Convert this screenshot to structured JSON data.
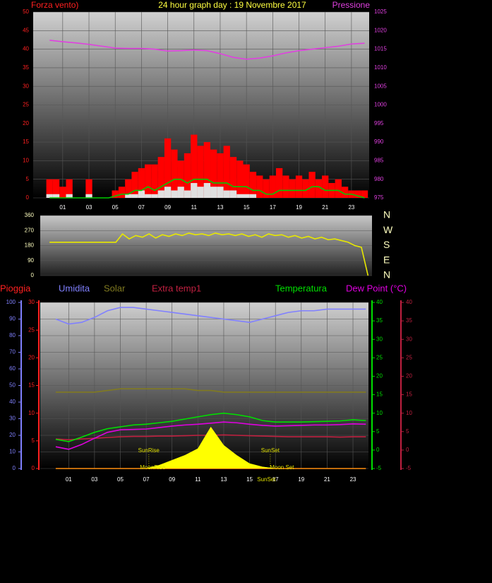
{
  "chart_data": [
    {
      "type": "combo",
      "title": "24 hour graph day : 19 Novembre 2017",
      "ylabel": "Forza vento)",
      "y2label": "Pressione",
      "ylim": [
        0,
        50
      ],
      "yticks": [
        0,
        5,
        10,
        15,
        20,
        25,
        30,
        35,
        40,
        45,
        50
      ],
      "ycolor": "#ff2020",
      "y2lim": [
        975,
        1025
      ],
      "y2ticks": [
        975,
        980,
        985,
        990,
        995,
        1000,
        1005,
        1010,
        1015,
        1020,
        1025
      ],
      "y2color": "#e040e0",
      "xlim": [
        -1.25,
        24.35
      ],
      "xticks": [
        {
          "value": 1,
          "label": "01"
        },
        {
          "value": 3,
          "label": "03"
        },
        {
          "value": 5,
          "label": "05"
        },
        {
          "value": 7,
          "label": "07"
        },
        {
          "value": 9,
          "label": "09"
        },
        {
          "value": 11,
          "label": "11"
        },
        {
          "value": 13,
          "label": "13"
        },
        {
          "value": 15,
          "label": "15"
        },
        {
          "value": 17,
          "label": "17"
        },
        {
          "value": 19,
          "label": "19"
        },
        {
          "value": 21,
          "label": "21"
        },
        {
          "value": 23,
          "label": "23"
        }
      ],
      "grid": true,
      "x": [
        0,
        0.5,
        1,
        1.5,
        2,
        2.5,
        3,
        3.5,
        4,
        4.5,
        5,
        5.5,
        6,
        6.5,
        7,
        7.5,
        8,
        8.5,
        9,
        9.5,
        10,
        10.5,
        11,
        11.5,
        12,
        12.5,
        13,
        13.5,
        14,
        14.5,
        15,
        15.5,
        16,
        16.5,
        17,
        17.5,
        18,
        18.5,
        19,
        19.5,
        20,
        20.5,
        21,
        21.5,
        22,
        22.5,
        23,
        23.5,
        24
      ],
      "series": [
        {
          "style": "bars",
          "axis": "y",
          "color": "#ff0000",
          "values": [
            5,
            5,
            3,
            5,
            0,
            0,
            5,
            0,
            0,
            0,
            2,
            3,
            5,
            7,
            8,
            9,
            9,
            11,
            16,
            13,
            10,
            12,
            17,
            14,
            15,
            13,
            12,
            14,
            11,
            10,
            9,
            7,
            6,
            5,
            6,
            8,
            6,
            5,
            6,
            5,
            7,
            5,
            6,
            4,
            5,
            3,
            2,
            2,
            2
          ]
        },
        {
          "style": "bars",
          "axis": "y",
          "color": "#e0e0e0",
          "values": [
            1,
            1,
            0,
            1,
            0,
            0,
            1,
            0,
            0,
            0,
            0,
            0,
            1,
            1,
            2,
            1,
            1,
            2,
            3,
            2,
            3,
            2,
            4,
            3,
            4,
            3,
            3,
            2,
            2,
            1,
            1,
            1,
            0,
            0,
            0,
            0,
            0,
            0,
            0,
            0,
            0,
            0,
            0,
            0,
            0,
            0,
            0,
            0,
            0
          ]
        },
        {
          "style": "line",
          "axis": "y",
          "color": "#00cc00",
          "values": [
            0,
            0,
            0,
            0,
            0,
            0,
            0,
            0,
            0,
            0,
            0.5,
            1,
            1,
            2,
            2,
            3,
            2,
            3,
            4,
            5,
            5,
            4,
            5,
            5,
            5,
            4,
            4,
            4,
            3,
            3,
            3,
            2,
            2,
            1,
            1,
            2,
            2,
            2,
            2,
            2,
            3,
            3,
            2,
            2,
            2,
            1,
            1,
            0.5,
            0
          ]
        },
        {
          "style": "line",
          "axis": "y2",
          "color": "#e040e0",
          "x": [
            0,
            1,
            2,
            3,
            4,
            5,
            6,
            7,
            8,
            9,
            10,
            11,
            12,
            13,
            14,
            15,
            16,
            17,
            18,
            19,
            20,
            21,
            22,
            23,
            24
          ],
          "values": [
            1017.4,
            1017.0,
            1016.7,
            1016.3,
            1015.8,
            1015.3,
            1015.2,
            1015.2,
            1015.0,
            1014.5,
            1014.6,
            1014.8,
            1014.6,
            1013.8,
            1012.8,
            1012.3,
            1012.6,
            1013.2,
            1014.0,
            1014.6,
            1015.0,
            1015.4,
            1015.8,
            1016.4,
            1016.6
          ]
        }
      ]
    },
    {
      "type": "combo",
      "ylim": [
        0,
        360
      ],
      "yticks": [
        0,
        90,
        180,
        270,
        360
      ],
      "ycolor": "#ffffc0",
      "y2lim": [
        0,
        360
      ],
      "y2ticks": [
        {
          "value": 360,
          "label": "N"
        },
        {
          "value": 270,
          "label": "W"
        },
        {
          "value": 180,
          "label": "S"
        },
        {
          "value": 90,
          "label": "E"
        },
        {
          "value": 0,
          "label": "N"
        }
      ],
      "y2color": "#ffffc0",
      "xlim": [
        -0.7,
        24.3
      ],
      "grid": true,
      "x": [
        0,
        0.5,
        1,
        1.5,
        2,
        2.5,
        3,
        3.5,
        4,
        4.5,
        5,
        5.5,
        6,
        6.5,
        7,
        7.5,
        8,
        8.5,
        9,
        9.5,
        10,
        10.5,
        11,
        11.5,
        12,
        12.5,
        13,
        13.5,
        14,
        14.5,
        15,
        15.5,
        16,
        16.5,
        17,
        17.5,
        18,
        18.5,
        19,
        19.5,
        20,
        20.5,
        21,
        21.5,
        22,
        22.5,
        23,
        23.5,
        24
      ],
      "series": [
        {
          "style": "line",
          "axis": "y",
          "color": "#e8e800",
          "values": [
            200,
            200,
            200,
            200,
            200,
            200,
            200,
            200,
            200,
            200,
            200,
            250,
            220,
            240,
            230,
            250,
            225,
            245,
            235,
            250,
            240,
            255,
            245,
            250,
            240,
            255,
            245,
            250,
            240,
            250,
            235,
            245,
            230,
            250,
            240,
            245,
            230,
            240,
            225,
            235,
            220,
            230,
            215,
            220,
            210,
            200,
            180,
            170,
            0
          ]
        }
      ]
    },
    {
      "type": "combo",
      "ylim": [
        0,
        100
      ],
      "yticks": [
        0,
        10,
        20,
        30,
        40,
        50,
        60,
        70,
        80,
        90,
        100
      ],
      "ycolor": "#8080ff",
      "y3lim": [
        0,
        30
      ],
      "y3ticks": [
        0,
        5,
        10,
        15,
        20,
        25,
        30
      ],
      "y3color": "#ff2020",
      "y2lim": [
        -5,
        40
      ],
      "y2ticks": [
        -5,
        0,
        5,
        10,
        15,
        20,
        25,
        30,
        35,
        40
      ],
      "y2color": "#00e000",
      "y4lim": [
        -5,
        40
      ],
      "y4ticks": [
        -5,
        0,
        5,
        10,
        15,
        20,
        25,
        30,
        35,
        40
      ],
      "y4color": "#c02040",
      "xlim": [
        -1.2,
        24.2
      ],
      "xticks": [
        {
          "value": 1,
          "label": "01"
        },
        {
          "value": 3,
          "label": "03"
        },
        {
          "value": 5,
          "label": "05"
        },
        {
          "value": 7,
          "label": "07"
        },
        {
          "value": 9,
          "label": "09"
        },
        {
          "value": 11,
          "label": "11"
        },
        {
          "value": 13,
          "label": "13"
        },
        {
          "value": 15,
          "label": "15"
        },
        {
          "value": 17,
          "label": "17"
        },
        {
          "value": 19,
          "label": "19"
        },
        {
          "value": 21,
          "label": "21"
        },
        {
          "value": 23,
          "label": "23"
        }
      ],
      "grid": true,
      "x": [
        0,
        1,
        2,
        3,
        4,
        5,
        6,
        7,
        8,
        9,
        10,
        11,
        12,
        13,
        14,
        15,
        16,
        17,
        18,
        19,
        20,
        21,
        22,
        23,
        24
      ],
      "series": [
        {
          "name": "Pioggia",
          "style": "line",
          "axis": "y3",
          "color": "#ff2020",
          "values": [
            0,
            0,
            0,
            0,
            0,
            0,
            0,
            0,
            0,
            0,
            0,
            0,
            0,
            0,
            0,
            0,
            0,
            0,
            0,
            0,
            0,
            0,
            0,
            0,
            0
          ]
        },
        {
          "name": "Umidita",
          "style": "line",
          "axis": "y",
          "color": "#8080ff",
          "values": [
            90,
            87,
            88,
            91,
            95,
            97,
            97,
            96,
            95,
            94,
            93,
            92,
            91,
            90,
            89,
            88,
            90,
            92,
            94,
            95,
            95,
            96,
            96,
            96,
            96
          ]
        },
        {
          "name": "Solar",
          "style": "line",
          "axis": "y",
          "color": "#807a20",
          "values": [
            46,
            46,
            46,
            46,
            47,
            48,
            48,
            48,
            48,
            48,
            48,
            47,
            47,
            46,
            46,
            46,
            46,
            46,
            46,
            46,
            46,
            46,
            46,
            46,
            46
          ]
        },
        {
          "name": "Extra temp1",
          "style": "line",
          "axis": "y4",
          "color": "#c02040",
          "values": [
            3.0,
            2.8,
            3.0,
            3.2,
            3.4,
            3.6,
            3.7,
            3.7,
            3.8,
            3.8,
            3.9,
            4.0,
            4.0,
            4.1,
            4.0,
            3.9,
            3.8,
            3.7,
            3.6,
            3.6,
            3.6,
            3.6,
            3.5,
            3.6,
            3.6
          ]
        },
        {
          "name": "Temperatura",
          "style": "line",
          "axis": "y2",
          "color": "#00e000",
          "values": [
            2.9,
            2.3,
            3.5,
            4.8,
            5.8,
            6.3,
            6.8,
            7.0,
            7.4,
            7.8,
            8.4,
            9.0,
            9.6,
            10.0,
            9.6,
            9.0,
            8.0,
            7.6,
            7.6,
            7.6,
            7.7,
            7.8,
            7.9,
            8.2,
            8.0
          ]
        },
        {
          "name": "Dew Point (°C)",
          "style": "line",
          "axis": "y2",
          "color": "#e000e0",
          "values": [
            0.9,
            0.2,
            1.5,
            3.2,
            4.8,
            5.5,
            5.6,
            5.7,
            6.1,
            6.5,
            6.8,
            7.0,
            7.3,
            7.6,
            7.4,
            7.0,
            6.7,
            6.5,
            6.6,
            6.7,
            6.8,
            6.8,
            6.9,
            7.1,
            7.0
          ]
        },
        {
          "style": "area",
          "axis": "y",
          "color": "#ffff00",
          "values": [
            0,
            0,
            0,
            0,
            0,
            0,
            0,
            0,
            2,
            5,
            8,
            12,
            25,
            14,
            8,
            3,
            1,
            0,
            0,
            0,
            0,
            0,
            0,
            0,
            0
          ]
        }
      ],
      "annotations": [
        {
          "text": "SunRise",
          "x": 7.2
        },
        {
          "text": "MoonRise",
          "x": 7.5
        },
        {
          "text": "SunSet",
          "x": 16.6
        },
        {
          "text": "Moon Set",
          "x": 17.5
        },
        {
          "text": "SunSet",
          "x": 16.3
        }
      ]
    }
  ]
}
